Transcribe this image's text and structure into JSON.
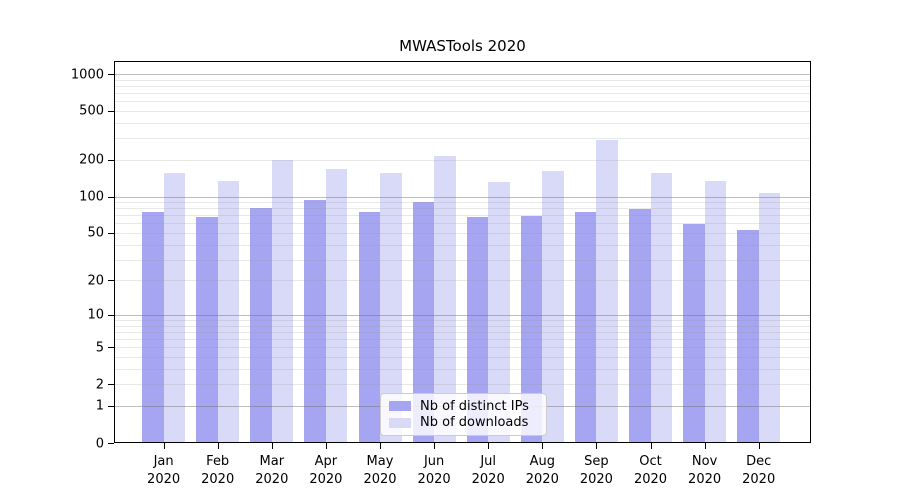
{
  "chart_data": {
    "type": "bar",
    "title": "MWASTools 2020",
    "categories": [
      "Jan",
      "Feb",
      "Mar",
      "Apr",
      "May",
      "Jun",
      "Jul",
      "Aug",
      "Sep",
      "Oct",
      "Nov",
      "Dec"
    ],
    "x_tick_second_line": "2020",
    "series": [
      {
        "name": "Nb of distinct IPs",
        "color": "#a5a5f2",
        "values": [
          74,
          68,
          81,
          93,
          74,
          90,
          68,
          69,
          75,
          79,
          59,
          53
        ]
      },
      {
        "name": "Nb of downloads",
        "color": "#d9d9f8",
        "values": [
          155,
          134,
          200,
          169,
          155,
          215,
          132,
          162,
          290,
          155,
          133,
          107
        ]
      }
    ],
    "y_axis": {
      "scale": "log1p",
      "tick_labels": [
        0,
        1,
        2,
        5,
        10,
        20,
        50,
        100,
        200,
        500,
        1000
      ],
      "major_gridlines": [
        1,
        10,
        100,
        1000
      ],
      "minor_gridline_bases": [
        1,
        10,
        100
      ],
      "ylim": [
        0,
        1280
      ]
    },
    "legend_position": "bottom-center",
    "grid": true,
    "frame": true,
    "colors": {
      "bar_distinct_ips": "#a5a5f2",
      "bar_downloads": "#d9d9f8",
      "spine": "#000000",
      "background": "#ffffff"
    }
  }
}
